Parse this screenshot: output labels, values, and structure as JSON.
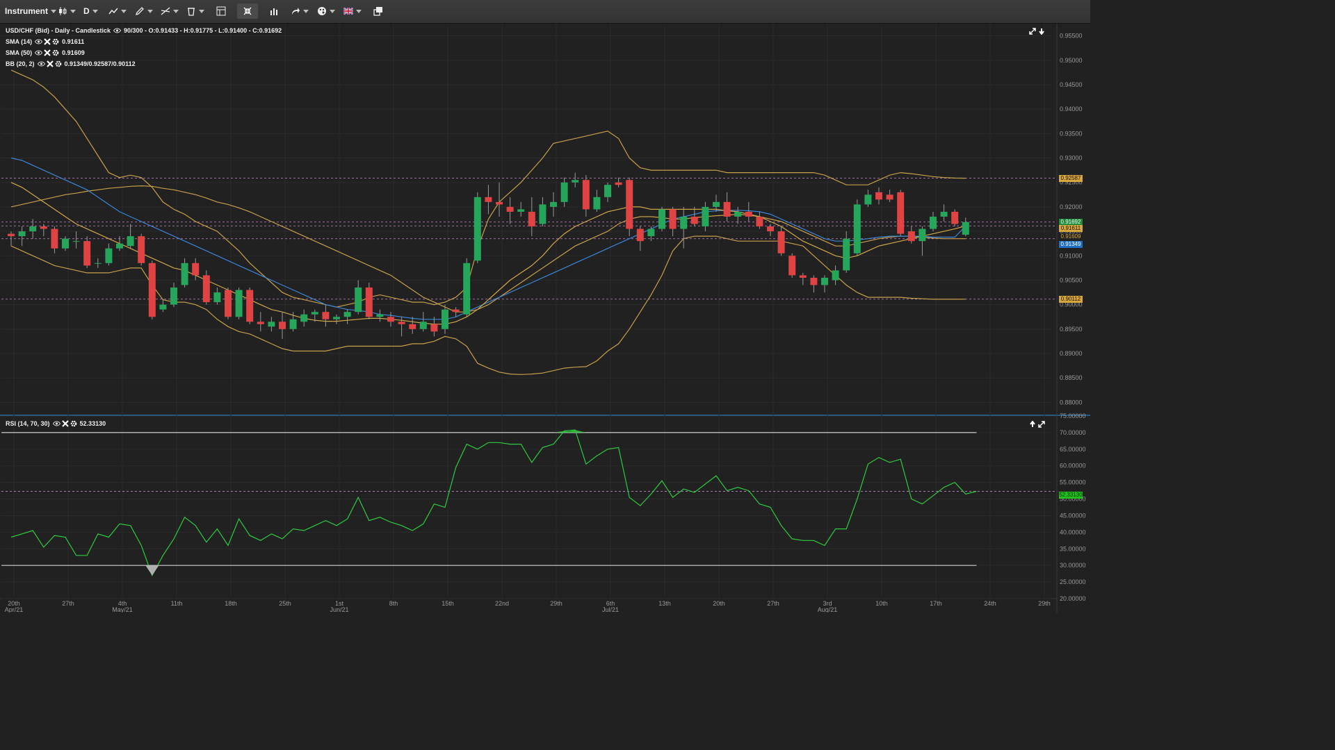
{
  "toolbar": {
    "instrument_label": "Instrument",
    "period_label": "D"
  },
  "colors": {
    "background": "#212121",
    "up_candle": "#26a65b",
    "down_candle": "#e04343",
    "bollinger": "#c8a04a",
    "sma14": "#d3a84a",
    "sma50": "#3a86d8",
    "rsi_line": "#2ecc40",
    "level_line": "#c98ad0",
    "tag_price": "#1e8a3a",
    "tag_sma14": "#d9a63c",
    "tag_sma50": "#1f6fc4"
  },
  "legend": {
    "main": {
      "title": "USD/CHF (Bid) - Daily - Candlestick",
      "values": "90/300 - O:0.91433 - H:0.91775 - L:0.91400 - C:0.91692"
    },
    "sma14": {
      "title": "SMA (14)",
      "value": "0.91611"
    },
    "sma50": {
      "title": "SMA (50)",
      "value": "0.91609"
    },
    "bb": {
      "title": "BB (20, 2)",
      "value": "0.91349/0.92587/0.90112"
    },
    "rsi": {
      "title": "RSI (14, 70, 30)",
      "value": "52.33130"
    }
  },
  "price_axis": [
    "0.95500",
    "0.95000",
    "0.94500",
    "0.94000",
    "0.93500",
    "0.93000",
    "0.92500",
    "0.92000",
    "0.91500",
    "0.91000",
    "0.90500",
    "0.90000",
    "0.89500",
    "0.89000",
    "0.88500",
    "0.88000"
  ],
  "price_tags": {
    "bb_upper": "0.92587",
    "close": "0.91692",
    "sma14": "0.91611",
    "sma50_label": "0.91609",
    "bb_mid": "0.91349",
    "bb_lower": "0.90112"
  },
  "rsi_axis": [
    "75.00000",
    "70.00000",
    "65.00000",
    "60.00000",
    "55.00000",
    "50.00000",
    "45.00000",
    "40.00000",
    "35.00000",
    "30.00000",
    "25.00000",
    "20.00000"
  ],
  "rsi_tag": "52.33130",
  "date_axis": [
    {
      "top": "20th",
      "bottom": "Apr/21"
    },
    {
      "top": "27th",
      "bottom": ""
    },
    {
      "top": "4th",
      "bottom": "May/21"
    },
    {
      "top": "11th",
      "bottom": ""
    },
    {
      "top": "18th",
      "bottom": ""
    },
    {
      "top": "25th",
      "bottom": ""
    },
    {
      "top": "1st",
      "bottom": "Jun/21"
    },
    {
      "top": "8th",
      "bottom": ""
    },
    {
      "top": "15th",
      "bottom": ""
    },
    {
      "top": "22nd",
      "bottom": ""
    },
    {
      "top": "29th",
      "bottom": ""
    },
    {
      "top": "6th",
      "bottom": "Jul/21"
    },
    {
      "top": "13th",
      "bottom": ""
    },
    {
      "top": "20th",
      "bottom": ""
    },
    {
      "top": "27th",
      "bottom": ""
    },
    {
      "top": "3rd",
      "bottom": "Aug/21"
    },
    {
      "top": "10th",
      "bottom": ""
    },
    {
      "top": "17th",
      "bottom": ""
    },
    {
      "top": "24th",
      "bottom": ""
    },
    {
      "top": "29th",
      "bottom": ""
    }
  ],
  "chart_data": {
    "type": "candlestick",
    "instrument": "USD/CHF (Bid)",
    "period": "Daily",
    "ylim": [
      0.8775,
      0.9575
    ],
    "rsi_ylim": [
      20,
      75
    ],
    "rsi_levels": [
      70,
      30
    ],
    "candles": [
      [
        0.9145,
        0.915,
        0.912,
        0.914
      ],
      [
        0.914,
        0.916,
        0.912,
        0.915
      ],
      [
        0.915,
        0.9175,
        0.9135,
        0.916
      ],
      [
        0.916,
        0.9165,
        0.914,
        0.9155
      ],
      [
        0.9155,
        0.916,
        0.9105,
        0.9115
      ],
      [
        0.9115,
        0.914,
        0.911,
        0.9135
      ],
      [
        0.913,
        0.915,
        0.9115,
        0.913
      ],
      [
        0.913,
        0.914,
        0.9075,
        0.908
      ],
      [
        0.9085,
        0.9095,
        0.9075,
        0.9085
      ],
      [
        0.9085,
        0.9125,
        0.908,
        0.9115
      ],
      [
        0.9115,
        0.914,
        0.911,
        0.9125
      ],
      [
        0.912,
        0.9165,
        0.9115,
        0.914
      ],
      [
        0.914,
        0.9145,
        0.908,
        0.9085
      ],
      [
        0.9085,
        0.909,
        0.897,
        0.8975
      ],
      [
        0.899,
        0.901,
        0.8985,
        0.9
      ],
      [
        0.9,
        0.9045,
        0.8995,
        0.9035
      ],
      [
        0.904,
        0.9095,
        0.9035,
        0.9085
      ],
      [
        0.9085,
        0.9095,
        0.905,
        0.906
      ],
      [
        0.906,
        0.907,
        0.9,
        0.9005
      ],
      [
        0.9005,
        0.9035,
        0.9,
        0.9025
      ],
      [
        0.903,
        0.9035,
        0.897,
        0.8975
      ],
      [
        0.8975,
        0.9035,
        0.897,
        0.903
      ],
      [
        0.903,
        0.9035,
        0.896,
        0.8965
      ],
      [
        0.8965,
        0.8985,
        0.8945,
        0.896
      ],
      [
        0.8955,
        0.8975,
        0.8945,
        0.8965
      ],
      [
        0.8965,
        0.8985,
        0.893,
        0.895
      ],
      [
        0.895,
        0.8985,
        0.8945,
        0.897
      ],
      [
        0.8965,
        0.899,
        0.8955,
        0.898
      ],
      [
        0.898,
        0.899,
        0.8965,
        0.8985
      ],
      [
        0.8985,
        0.9,
        0.8955,
        0.897
      ],
      [
        0.897,
        0.898,
        0.896,
        0.8975
      ],
      [
        0.8975,
        0.899,
        0.896,
        0.8985
      ],
      [
        0.8985,
        0.905,
        0.898,
        0.9035
      ],
      [
        0.9035,
        0.9045,
        0.897,
        0.8975
      ],
      [
        0.8975,
        0.899,
        0.8965,
        0.898
      ],
      [
        0.8975,
        0.8985,
        0.8955,
        0.8965
      ],
      [
        0.8965,
        0.8975,
        0.8935,
        0.896
      ],
      [
        0.896,
        0.8975,
        0.894,
        0.895
      ],
      [
        0.895,
        0.8985,
        0.8945,
        0.8965
      ],
      [
        0.896,
        0.8975,
        0.8935,
        0.8945
      ],
      [
        0.895,
        0.9,
        0.894,
        0.899
      ],
      [
        0.899,
        0.8995,
        0.8975,
        0.8985
      ],
      [
        0.898,
        0.9095,
        0.8975,
        0.9085
      ],
      [
        0.909,
        0.923,
        0.9085,
        0.922
      ],
      [
        0.922,
        0.9245,
        0.9185,
        0.921
      ],
      [
        0.921,
        0.925,
        0.918,
        0.9205
      ],
      [
        0.92,
        0.922,
        0.9165,
        0.919
      ],
      [
        0.919,
        0.921,
        0.918,
        0.9195
      ],
      [
        0.919,
        0.922,
        0.914,
        0.916
      ],
      [
        0.9165,
        0.922,
        0.916,
        0.9205
      ],
      [
        0.92,
        0.923,
        0.918,
        0.921
      ],
      [
        0.921,
        0.926,
        0.92,
        0.925
      ],
      [
        0.925,
        0.927,
        0.924,
        0.9255
      ],
      [
        0.9255,
        0.9265,
        0.918,
        0.9195
      ],
      [
        0.9195,
        0.9235,
        0.919,
        0.922
      ],
      [
        0.922,
        0.925,
        0.921,
        0.9245
      ],
      [
        0.925,
        0.926,
        0.924,
        0.9245
      ],
      [
        0.9255,
        0.926,
        0.914,
        0.9155
      ],
      [
        0.9155,
        0.916,
        0.911,
        0.913
      ],
      [
        0.914,
        0.916,
        0.913,
        0.9155
      ],
      [
        0.9155,
        0.92,
        0.915,
        0.9195
      ],
      [
        0.9195,
        0.92,
        0.914,
        0.9155
      ],
      [
        0.9155,
        0.92,
        0.9115,
        0.918
      ],
      [
        0.918,
        0.92,
        0.916,
        0.9165
      ],
      [
        0.916,
        0.921,
        0.915,
        0.92
      ],
      [
        0.92,
        0.9225,
        0.919,
        0.921
      ],
      [
        0.921,
        0.923,
        0.917,
        0.918
      ],
      [
        0.918,
        0.92,
        0.9165,
        0.919
      ],
      [
        0.919,
        0.921,
        0.917,
        0.918
      ],
      [
        0.918,
        0.919,
        0.9155,
        0.916
      ],
      [
        0.916,
        0.9165,
        0.914,
        0.915
      ],
      [
        0.915,
        0.916,
        0.91,
        0.9105
      ],
      [
        0.91,
        0.9105,
        0.9055,
        0.906
      ],
      [
        0.906,
        0.9065,
        0.904,
        0.9055
      ],
      [
        0.9055,
        0.906,
        0.9025,
        0.904
      ],
      [
        0.904,
        0.906,
        0.9025,
        0.9055
      ],
      [
        0.905,
        0.908,
        0.904,
        0.907
      ],
      [
        0.907,
        0.915,
        0.9065,
        0.9135
      ],
      [
        0.9105,
        0.9215,
        0.91,
        0.9205
      ],
      [
        0.9205,
        0.9235,
        0.92,
        0.9225
      ],
      [
        0.923,
        0.924,
        0.9205,
        0.9215
      ],
      [
        0.9225,
        0.9235,
        0.921,
        0.9215
      ],
      [
        0.923,
        0.9235,
        0.914,
        0.9145
      ],
      [
        0.915,
        0.916,
        0.9125,
        0.913
      ],
      [
        0.913,
        0.916,
        0.91,
        0.9155
      ],
      [
        0.9155,
        0.919,
        0.915,
        0.918
      ],
      [
        0.918,
        0.9205,
        0.917,
        0.919
      ],
      [
        0.919,
        0.9195,
        0.916,
        0.9165
      ],
      [
        0.9143,
        0.9178,
        0.914,
        0.9169
      ]
    ],
    "bb_upper": [
      0.948,
      0.947,
      0.946,
      0.9445,
      0.9425,
      0.94,
      0.9375,
      0.934,
      0.9305,
      0.927,
      0.926,
      0.9265,
      0.926,
      0.924,
      0.921,
      0.9195,
      0.9185,
      0.917,
      0.916,
      0.915,
      0.913,
      0.911,
      0.9085,
      0.9065,
      0.9045,
      0.9025,
      0.9015,
      0.901,
      0.9005,
      0.9,
      0.8995,
      0.9,
      0.9005,
      0.9015,
      0.902,
      0.9015,
      0.901,
      0.9005,
      0.9005,
      0.9,
      0.9005,
      0.9015,
      0.9035,
      0.9115,
      0.9175,
      0.921,
      0.923,
      0.925,
      0.9275,
      0.93,
      0.933,
      0.9335,
      0.934,
      0.9345,
      0.935,
      0.9355,
      0.934,
      0.93,
      0.928,
      0.9275,
      0.9275,
      0.9275,
      0.9275,
      0.9275,
      0.9275,
      0.9275,
      0.927,
      0.927,
      0.927,
      0.927,
      0.927,
      0.927,
      0.927,
      0.927,
      0.927,
      0.9265,
      0.9255,
      0.9245,
      0.9245,
      0.9245,
      0.9255,
      0.9265,
      0.927,
      0.9268,
      0.9265,
      0.9262,
      0.926,
      0.9259,
      0.92587
    ],
    "bb_middle": [
      0.92,
      0.9205,
      0.921,
      0.9215,
      0.922,
      0.9225,
      0.9228,
      0.9232,
      0.9235,
      0.9238,
      0.924,
      0.9242,
      0.9243,
      0.9242,
      0.9238,
      0.9235,
      0.923,
      0.9225,
      0.9218,
      0.921,
      0.9205,
      0.9198,
      0.919,
      0.918,
      0.917,
      0.916,
      0.915,
      0.914,
      0.913,
      0.912,
      0.911,
      0.91,
      0.909,
      0.908,
      0.907,
      0.906,
      0.9045,
      0.903,
      0.9015,
      0.9005,
      0.8995,
      0.8985,
      0.8985,
      0.899,
      0.9,
      0.9015,
      0.903,
      0.9045,
      0.906,
      0.9075,
      0.909,
      0.9105,
      0.912,
      0.913,
      0.914,
      0.915,
      0.9165,
      0.9175,
      0.918,
      0.918,
      0.9178,
      0.9175,
      0.9175,
      0.9178,
      0.918,
      0.9182,
      0.9183,
      0.9185,
      0.9183,
      0.918,
      0.9175,
      0.917,
      0.916,
      0.915,
      0.914,
      0.913,
      0.912,
      0.912,
      0.9125,
      0.913,
      0.9135,
      0.9138,
      0.914,
      0.914,
      0.9138,
      0.9136,
      0.9135,
      0.9135,
      0.91349
    ],
    "bb_lower": [
      0.912,
      0.911,
      0.91,
      0.909,
      0.908,
      0.9075,
      0.907,
      0.9065,
      0.9065,
      0.9065,
      0.907,
      0.9075,
      0.9075,
      0.904,
      0.901,
      0.9005,
      0.9005,
      0.9,
      0.899,
      0.897,
      0.8955,
      0.8945,
      0.894,
      0.893,
      0.892,
      0.891,
      0.8905,
      0.8905,
      0.8905,
      0.8905,
      0.891,
      0.8915,
      0.8915,
      0.8915,
      0.8915,
      0.8915,
      0.8915,
      0.892,
      0.892,
      0.8925,
      0.8935,
      0.893,
      0.8915,
      0.888,
      0.887,
      0.8862,
      0.8858,
      0.8857,
      0.8858,
      0.886,
      0.8865,
      0.887,
      0.8872,
      0.8873,
      0.8885,
      0.8905,
      0.892,
      0.895,
      0.8985,
      0.902,
      0.906,
      0.911,
      0.9135,
      0.914,
      0.914,
      0.914,
      0.9135,
      0.913,
      0.913,
      0.913,
      0.913,
      0.913,
      0.9125,
      0.912,
      0.91,
      0.908,
      0.906,
      0.904,
      0.9025,
      0.9015,
      0.9015,
      0.9015,
      0.9015,
      0.9013,
      0.9012,
      0.9011,
      0.9011,
      0.9011,
      0.90112
    ],
    "sma14": [
      0.925,
      0.924,
      0.9225,
      0.921,
      0.9195,
      0.918,
      0.9165,
      0.9155,
      0.9145,
      0.9135,
      0.9125,
      0.9115,
      0.9105,
      0.9095,
      0.9085,
      0.9075,
      0.907,
      0.906,
      0.905,
      0.904,
      0.903,
      0.902,
      0.901,
      0.9,
      0.899,
      0.8985,
      0.8978,
      0.8972,
      0.8968,
      0.8966,
      0.8966,
      0.8968,
      0.897,
      0.8972,
      0.8972,
      0.897,
      0.8968,
      0.8965,
      0.8962,
      0.896,
      0.896,
      0.8965,
      0.8975,
      0.899,
      0.901,
      0.903,
      0.905,
      0.9065,
      0.908,
      0.91,
      0.9125,
      0.9145,
      0.916,
      0.917,
      0.918,
      0.919,
      0.9195,
      0.92,
      0.92,
      0.9195,
      0.9195,
      0.9195,
      0.9195,
      0.9195,
      0.9195,
      0.9195,
      0.9192,
      0.919,
      0.9185,
      0.918,
      0.917,
      0.916,
      0.9145,
      0.913,
      0.912,
      0.911,
      0.91,
      0.9095,
      0.91,
      0.911,
      0.912,
      0.9125,
      0.913,
      0.9135,
      0.914,
      0.9145,
      0.915,
      0.9155,
      0.91611
    ],
    "sma50": [
      0.93,
      0.9295,
      0.9285,
      0.9275,
      0.9265,
      0.9255,
      0.9245,
      0.9235,
      0.922,
      0.9205,
      0.919,
      0.918,
      0.917,
      0.916,
      0.915,
      0.914,
      0.913,
      0.912,
      0.911,
      0.91,
      0.909,
      0.908,
      0.907,
      0.906,
      0.905,
      0.904,
      0.903,
      0.902,
      0.901,
      0.9,
      0.8995,
      0.899,
      0.8988,
      0.8985,
      0.898,
      0.8978,
      0.8975,
      0.8972,
      0.897,
      0.897,
      0.897,
      0.8975,
      0.8985,
      0.8995,
      0.9005,
      0.9015,
      0.9025,
      0.9035,
      0.9045,
      0.9055,
      0.9065,
      0.9075,
      0.9085,
      0.9095,
      0.9105,
      0.9115,
      0.9125,
      0.9135,
      0.9145,
      0.9155,
      0.9165,
      0.9175,
      0.918,
      0.9185,
      0.919,
      0.9192,
      0.9193,
      0.9193,
      0.9192,
      0.919,
      0.9185,
      0.9175,
      0.9165,
      0.9155,
      0.9145,
      0.9135,
      0.913,
      0.913,
      0.9132,
      0.9135,
      0.9138,
      0.914,
      0.914,
      0.914,
      0.914,
      0.9138,
      0.9138,
      0.9138,
      0.91609
    ],
    "rsi": [
      38.5,
      39.5,
      40.5,
      35.5,
      39.0,
      38.5,
      33.0,
      33.0,
      39.5,
      38.5,
      42.5,
      42.0,
      36.0,
      27.0,
      33.0,
      38.0,
      44.5,
      42.0,
      37.0,
      41.0,
      36.0,
      44.0,
      39.0,
      37.5,
      39.5,
      38.0,
      41.0,
      40.5,
      42.0,
      43.5,
      42.0,
      44.0,
      50.5,
      43.5,
      44.5,
      43.0,
      42.0,
      40.5,
      42.5,
      48.5,
      47.5,
      59.5,
      66.5,
      65.0,
      67.0,
      67.0,
      66.5,
      66.5,
      61.0,
      65.5,
      66.5,
      70.5,
      70.8,
      60.5,
      63.0,
      65.0,
      65.5,
      50.5,
      48.0,
      51.5,
      55.5,
      50.5,
      53.0,
      52.0,
      54.5,
      57.0,
      52.5,
      53.5,
      52.5,
      48.5,
      47.5,
      42.0,
      38.0,
      37.5,
      37.5,
      36.0,
      41.0,
      41.0,
      50.0,
      60.5,
      62.5,
      61.0,
      62.0,
      50.0,
      48.5,
      51.0,
      53.5,
      55.0,
      51.5,
      52.3
    ]
  }
}
